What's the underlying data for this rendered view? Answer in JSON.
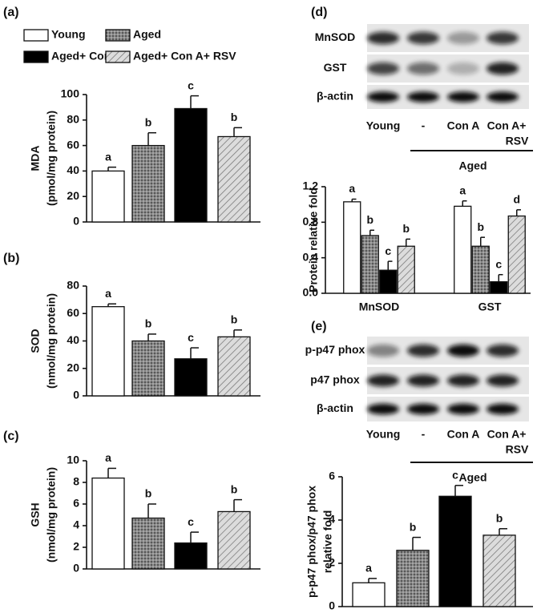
{
  "panel_labels": [
    "(a)",
    "(b)",
    "(c)",
    "(d)",
    "(e)"
  ],
  "legend": [
    {
      "name": "Young",
      "color": "#ffffff",
      "pattern": "solid"
    },
    {
      "name": "Aged",
      "color": "#8a8a8a",
      "pattern": "dots"
    },
    {
      "name": "Aged+ Con A",
      "color": "#000000",
      "pattern": "solid"
    },
    {
      "name": "Aged+ Con A+ RSV",
      "color": "#dcdcdc",
      "pattern": "hatch"
    }
  ],
  "blots": [
    {
      "rows": [
        "MnSOD",
        "GST",
        "β-actin"
      ],
      "lanes": [
        [
          "Young"
        ],
        [
          "-"
        ],
        [
          "Con A"
        ],
        [
          "Con A+",
          "RSV"
        ]
      ],
      "group": "Aged"
    },
    {
      "rows": [
        "p-p47 phox",
        "p47 phox",
        "β-actin"
      ],
      "lanes": [
        [
          "Young"
        ],
        [
          "-"
        ],
        [
          "Con A"
        ],
        [
          "Con A+",
          "RSV"
        ]
      ],
      "group": "Aged"
    }
  ],
  "chart_data": [
    {
      "type": "bar",
      "ylabel": [
        "MDA",
        "(pmol/mg protein)"
      ],
      "ylim": [
        0,
        100
      ],
      "yticks": [
        0,
        20,
        40,
        60,
        80,
        100
      ],
      "values": [
        40,
        60,
        89,
        67
      ],
      "errors": [
        3,
        10,
        10,
        7
      ],
      "annotations": [
        "a",
        "b",
        "c",
        "b"
      ]
    },
    {
      "type": "bar",
      "ylabel": [
        "SOD",
        "(nmol/mg protein)"
      ],
      "ylim": [
        0,
        80
      ],
      "yticks": [
        0,
        20,
        40,
        60,
        80
      ],
      "values": [
        65,
        40,
        27,
        43
      ],
      "errors": [
        2,
        5,
        8,
        5
      ],
      "annotations": [
        "a",
        "b",
        "c",
        "b"
      ]
    },
    {
      "type": "bar",
      "ylabel": [
        "GSH",
        "(nmol/mg protein)"
      ],
      "ylim": [
        0,
        10
      ],
      "yticks": [
        0,
        2,
        4,
        6,
        8,
        10
      ],
      "values": [
        8.4,
        4.7,
        2.4,
        5.3
      ],
      "errors": [
        0.9,
        1.3,
        1.0,
        1.1
      ],
      "annotations": [
        "a",
        "b",
        "c",
        "b"
      ]
    },
    {
      "type": "grouped_bar",
      "ylabel": [
        "Protein relative fold"
      ],
      "ylim": [
        0,
        1.2
      ],
      "yticks": [
        {
          "value": 0,
          "label": "0.0"
        },
        0.4,
        0.8,
        1.2
      ],
      "categories": [
        "MnSOD",
        "GST"
      ],
      "series": [
        {
          "values": [
            1.03,
            0.98
          ],
          "errors": [
            0.03,
            0.06
          ],
          "annotations": [
            "a",
            "a"
          ]
        },
        {
          "values": [
            0.65,
            0.53
          ],
          "errors": [
            0.06,
            0.1
          ],
          "annotations": [
            "b",
            "b"
          ]
        },
        {
          "values": [
            0.26,
            0.13
          ],
          "errors": [
            0.1,
            0.08
          ],
          "annotations": [
            "c",
            "c"
          ]
        },
        {
          "values": [
            0.53,
            0.87
          ],
          "errors": [
            0.08,
            0.07
          ],
          "annotations": [
            "b",
            "d"
          ]
        }
      ]
    },
    {
      "type": "bar",
      "ylabel": [
        "p-p47 phox/p47 phox",
        "relative fold"
      ],
      "ylim": [
        0,
        6
      ],
      "yticks": [
        0,
        2,
        4,
        6
      ],
      "values": [
        1.1,
        2.6,
        5.1,
        3.3
      ],
      "errors": [
        0.2,
        0.6,
        0.5,
        0.3
      ],
      "annotations": [
        "a",
        "b",
        "c",
        "b"
      ]
    }
  ]
}
